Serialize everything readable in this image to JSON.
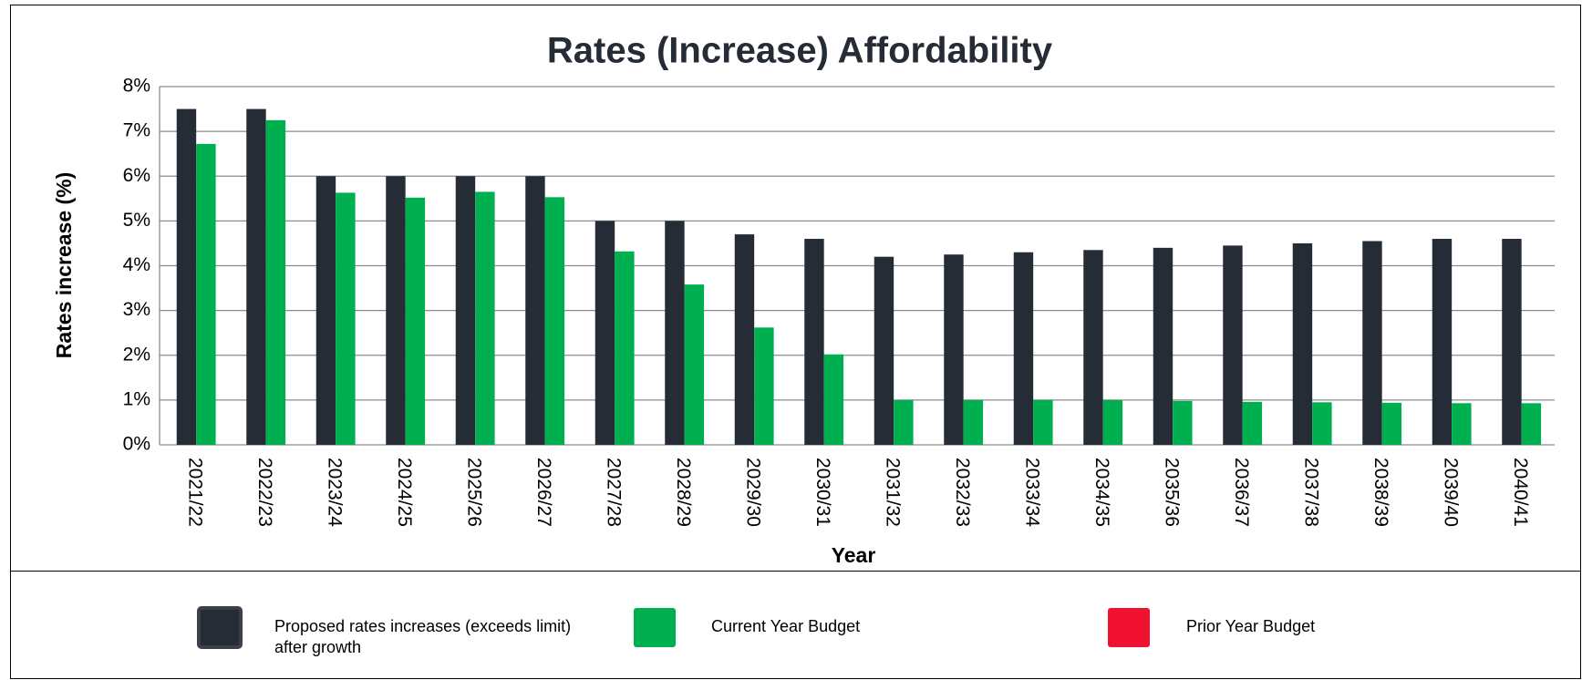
{
  "chart_data": {
    "type": "bar",
    "title": "Rates (Increase) Affordability",
    "x_label": "Year",
    "y_label": "Rates increase (%)",
    "categories": [
      "2021/22",
      "2022/23",
      "2023/24",
      "2024/25",
      "2025/26",
      "2026/27",
      "2027/28",
      "2028/29",
      "2029/30",
      "2030/31",
      "2031/32",
      "2032/33",
      "2033/34",
      "2034/35",
      "2035/36",
      "2036/37",
      "2037/38",
      "2038/39",
      "2039/40",
      "2040/41"
    ],
    "series": [
      {
        "name": "Proposed rates increases (exceeds limit) after growth",
        "color": "#262c36",
        "values": [
          7.5,
          7.5,
          6,
          6,
          6,
          6,
          5,
          5,
          4.7,
          4.6,
          4.2,
          4.25,
          4.3,
          4.35,
          4.4,
          4.45,
          4.5,
          4.55,
          4.6,
          4.6
        ]
      },
      {
        "name": "Current Year Budget",
        "color": "#00b050",
        "values": [
          6.72,
          7.25,
          5.63,
          5.52,
          5.65,
          5.53,
          4.32,
          3.58,
          2.62,
          2.02,
          1.0,
          1.0,
          1.0,
          1.0,
          0.98,
          0.96,
          0.95,
          0.94,
          0.93,
          0.93
        ]
      },
      {
        "name": "Prior Year Budget",
        "color": "#f0102f",
        "values": [
          null,
          null,
          null,
          null,
          null,
          null,
          null,
          null,
          null,
          null,
          null,
          null,
          null,
          null,
          null,
          null,
          null,
          null,
          null,
          null
        ]
      }
    ],
    "ylim": [
      0,
      8
    ],
    "yticks": [
      {
        "value": 0,
        "label": "0%"
      },
      {
        "value": 1,
        "label": "1%"
      },
      {
        "value": 2,
        "label": "2%"
      },
      {
        "value": 3,
        "label": "3%"
      },
      {
        "value": 4,
        "label": "4%"
      },
      {
        "value": 5,
        "label": "5%"
      },
      {
        "value": 6,
        "label": "6%"
      },
      {
        "value": 7,
        "label": "7%"
      },
      {
        "value": 8,
        "label": "8%"
      }
    ],
    "grid": true,
    "legend": "bottom"
  }
}
